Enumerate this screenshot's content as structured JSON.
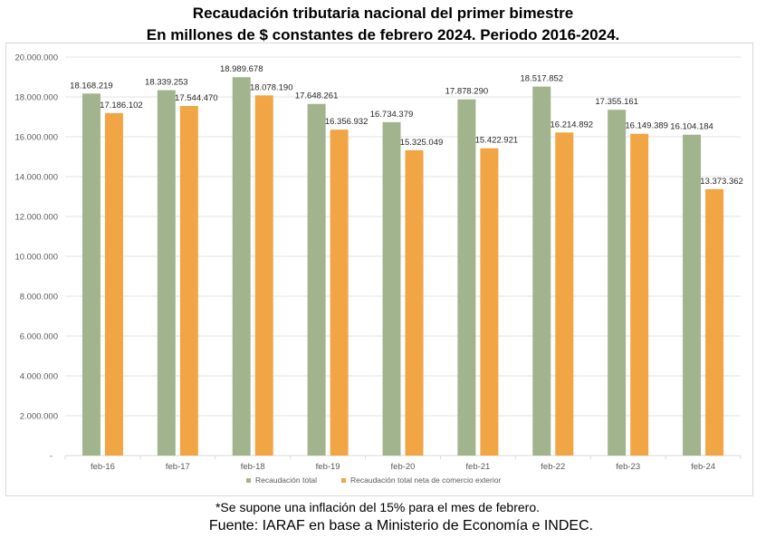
{
  "header": {
    "title_line1": "Recaudación tributaria nacional del primer bimestre",
    "title_line2": "En millones de $ constantes de febrero 2024. Periodo 2016-2024."
  },
  "footer": {
    "note": "*Se supone una inflación del 15% para el mes de febrero.",
    "source": "Fuente: IARAF en base a Ministerio de Economía e INDEC."
  },
  "colors": {
    "series_total": "#a2b48e",
    "series_net": "#f2a545",
    "grid": "#e3e3e3",
    "axis_text": "#595959",
    "label_text": "#262626"
  },
  "chart_data": {
    "type": "bar",
    "title": "Recaudación tributaria nacional del primer bimestre",
    "subtitle": "En millones de $ constantes de febrero 2024. Periodo 2016-2024.",
    "xlabel": "",
    "ylabel": "",
    "ylim": [
      0,
      20000000
    ],
    "yticks": [
      0,
      2000000,
      4000000,
      6000000,
      8000000,
      10000000,
      12000000,
      14000000,
      16000000,
      18000000,
      20000000
    ],
    "ytick_labels": [
      "-",
      "2.000.000",
      "4.000.000",
      "6.000.000",
      "8.000.000",
      "10.000.000",
      "12.000.000",
      "14.000.000",
      "16.000.000",
      "18.000.000",
      "20.000.000"
    ],
    "grid": true,
    "legend_position": "bottom",
    "categories": [
      "feb-16",
      "feb-17",
      "feb-18",
      "feb-19",
      "feb-20",
      "feb-21",
      "feb-22",
      "feb-23",
      "feb-24"
    ],
    "series": [
      {
        "name": "Recaudación total",
        "values": [
          18168219,
          18339253,
          18989678,
          17648261,
          16734379,
          17878290,
          18517852,
          17355161,
          16104184
        ],
        "labels": [
          "18.168.219",
          "18.339.253",
          "18.989.678",
          "17.648.261",
          "16.734.379",
          "17.878.290",
          "18.517.852",
          "17.355.161",
          "16.104.184"
        ]
      },
      {
        "name": "Recaudación total neta de comercio exterior",
        "values": [
          17186102,
          17544470,
          18078190,
          16356932,
          15325049,
          15422921,
          16214892,
          16149389,
          13373362
        ],
        "labels": [
          "17.186.102",
          "17.544.470",
          "18.078.190",
          "16.356.932",
          "15.325.049",
          "15.422.921",
          "16.214.892",
          "16.149.389",
          "13.373.362"
        ]
      }
    ]
  }
}
